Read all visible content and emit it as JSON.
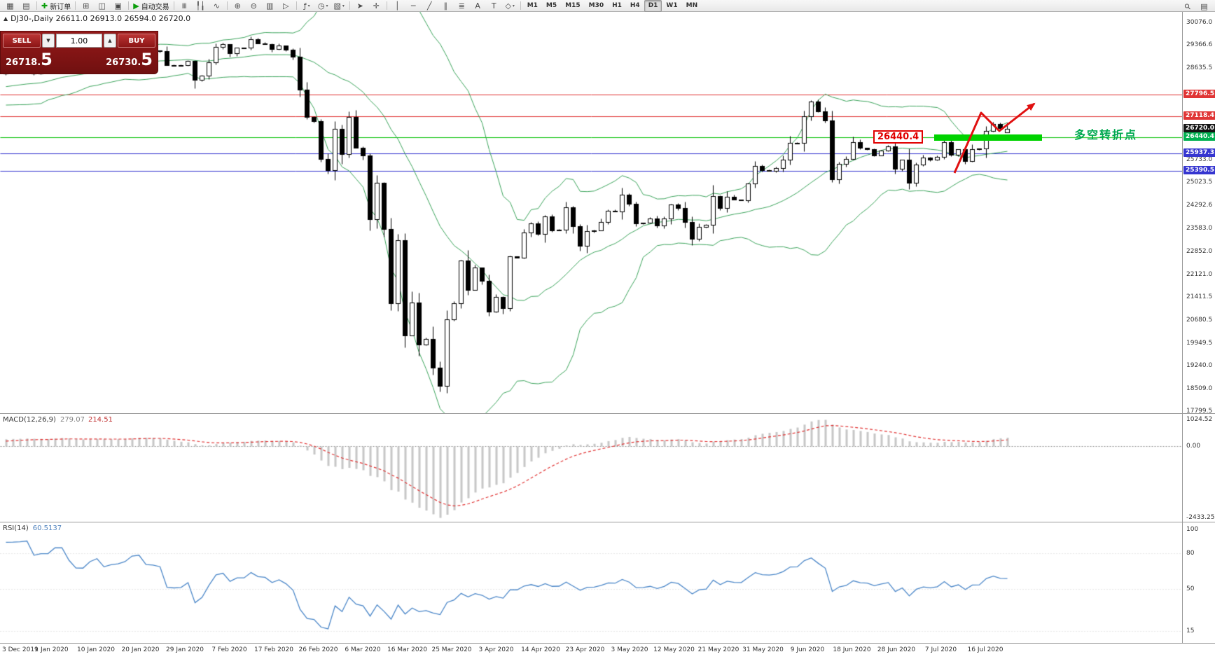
{
  "toolbar": {
    "caret_glyph": "▾",
    "groups": [
      {
        "name": "windows",
        "items": [
          {
            "name": "new-chart",
            "glyph": "▦"
          },
          {
            "name": "chart-profiles",
            "glyph": "▤"
          }
        ]
      },
      {
        "name": "trade",
        "items": [
          {
            "name": "new-order",
            "glyph": "✚",
            "label": "新订单"
          }
        ]
      },
      {
        "name": "panels",
        "items": [
          {
            "name": "market-watch",
            "glyph": "⊞"
          },
          {
            "name": "data-window",
            "glyph": "◫"
          },
          {
            "name": "navigator",
            "glyph": "▣"
          }
        ]
      },
      {
        "name": "autotrading",
        "items": [
          {
            "name": "autotrading",
            "glyph": "▶",
            "label": "自动交易"
          }
        ]
      },
      {
        "name": "chart-types",
        "items": [
          {
            "name": "bar-chart",
            "glyph": "ⅲ"
          },
          {
            "name": "candlestick-chart",
            "glyph": "╿╽"
          },
          {
            "name": "line-chart",
            "glyph": "∿"
          }
        ]
      },
      {
        "name": "zoom",
        "items": [
          {
            "name": "zoom-in",
            "glyph": "⊕"
          },
          {
            "name": "zoom-out",
            "glyph": "⊖"
          },
          {
            "name": "auto-scroll",
            "glyph": "▥"
          },
          {
            "name": "chart-shift",
            "glyph": "▷"
          }
        ]
      },
      {
        "name": "chart-tools",
        "items": [
          {
            "name": "indicators",
            "glyph": "ƒ",
            "caret": true
          },
          {
            "name": "periods",
            "glyph": "◷",
            "caret": true
          },
          {
            "name": "templates",
            "glyph": "▧",
            "caret": true
          }
        ]
      },
      {
        "name": "cursor-tools",
        "items": [
          {
            "name": "cursor",
            "glyph": "➤"
          },
          {
            "name": "crosshair",
            "glyph": "✛"
          }
        ]
      },
      {
        "name": "line-studies",
        "items": [
          {
            "name": "vertical-line",
            "glyph": "│"
          },
          {
            "name": "horizontal-line",
            "glyph": "─"
          },
          {
            "name": "trendline",
            "glyph": "╱"
          },
          {
            "name": "equidistant-channel",
            "glyph": "∥"
          },
          {
            "name": "fibonacci",
            "glyph": "≣"
          },
          {
            "name": "text",
            "glyph": "A"
          },
          {
            "name": "text-label",
            "glyph": "T"
          },
          {
            "name": "arrows",
            "glyph": "◇",
            "caret": true
          }
        ]
      }
    ],
    "timeframes": [
      {
        "label": "M1"
      },
      {
        "label": "M5"
      },
      {
        "label": "M15"
      },
      {
        "label": "M30"
      },
      {
        "label": "H1"
      },
      {
        "label": "H4"
      },
      {
        "label": "D1",
        "active": true
      },
      {
        "label": "W1"
      },
      {
        "label": "MN"
      }
    ],
    "right_icons": [
      {
        "name": "search",
        "glyph": "⚲"
      },
      {
        "name": "journal",
        "glyph": "▤"
      }
    ]
  },
  "chart": {
    "icon": "▲",
    "title": "DJ30-,Daily 26611.0 26913.0 26594.0 26720.0"
  },
  "trade_panel": {
    "sell_label": "SELL",
    "buy_label": "BUY",
    "volume": "1.00",
    "spin_down": "▼",
    "spin_up": "▲",
    "sell_price_small": "26718.",
    "sell_price_big": "5",
    "buy_price_small": "26730.",
    "buy_price_big": "5"
  },
  "annotations": {
    "level_label": "26440.4",
    "note": "多空转折点"
  },
  "macd": {
    "name": "MACD(12,26,9)",
    "value_main": "279.07",
    "value_signal": "214.51",
    "scale": [
      "1024.52",
      "0.00",
      "-2433.25"
    ]
  },
  "rsi": {
    "name": "RSI(14)",
    "value": "60.5137",
    "levels": [
      100,
      80,
      50,
      15
    ]
  },
  "price_axis": {
    "ticks": [
      "30076.0",
      "29366.6",
      "28635.5",
      "25733.0",
      "25023.5",
      "24292.6",
      "23583.0",
      "22852.0",
      "22121.0",
      "21411.5",
      "20680.5",
      "19949.5",
      "19240.0",
      "18509.0",
      "17799.5"
    ],
    "badges": [
      {
        "value": "27796.5",
        "color": "#e03535"
      },
      {
        "value": "27118.4",
        "color": "#e03535"
      },
      {
        "value": "26720.0",
        "color": "#141414"
      },
      {
        "value": "26440.4",
        "color": "#00b050"
      },
      {
        "value": "25937.3",
        "color": "#3535d0"
      },
      {
        "value": "25390.5",
        "color": "#3535d0"
      }
    ]
  },
  "date_axis": [
    "3 Dec 2019",
    "1 Jan 2020",
    "10 Jan 2020",
    "20 Jan 2020",
    "29 Jan 2020",
    "7 Feb 2020",
    "17 Feb 2020",
    "26 Feb 2020",
    "6 Mar 2020",
    "16 Mar 2020",
    "25 Mar 2020",
    "3 Apr 2020",
    "14 Apr 2020",
    "23 Apr 2020",
    "3 May 2020",
    "12 May 2020",
    "21 May 2020",
    "31 May 2020",
    "9 Jun 2020",
    "18 Jun 2020",
    "28 Jun 2020",
    "7 Jul 2020",
    "16 Jul 2020"
  ],
  "chart_data": {
    "type": "candlestick",
    "symbol": "DJ30-",
    "timeframe": "Daily",
    "last_ohlc": {
      "open": 26611.0,
      "high": 26913.0,
      "low": 26594.0,
      "close": 26720.0
    },
    "price_axis_range": [
      17733,
      30408
    ],
    "warmup_closes": [
      27502,
      27650,
      27677,
      28015,
      27910,
      27882,
      27912,
      28132,
      28135,
      28235,
      28236,
      28267,
      28376,
      28455
    ],
    "closes": [
      28504,
      28515,
      28551,
      28621,
      28462,
      28538,
      28538,
      28869,
      28869,
      28704,
      28584,
      28583,
      28823,
      28957,
      28824,
      28907,
      28939,
      29030,
      29297,
      29348,
      29196,
      29186,
      29160,
      28736,
      28723,
      28734,
      28859,
      28256,
      28400,
      28808,
      29291,
      29380,
      29103,
      29277,
      29276,
      29551,
      29423,
      29398,
      29232,
      29348,
      29220,
      28993,
      27961,
      27081,
      26958,
      25767,
      25409,
      26703,
      25917,
      27091,
      26121,
      25865,
      23851,
      25018,
      23553,
      21200,
      23186,
      20189,
      21237,
      19899,
      20087,
      19174,
      18592,
      20705,
      21201,
      22552,
      21637,
      22327,
      21917,
      20944,
      21413,
      21053,
      22680,
      22654,
      23434,
      23719,
      23391,
      23949,
      23504,
      23537,
      24242,
      23650,
      23018,
      23476,
      23515,
      23775,
      24134,
      24102,
      24634,
      24346,
      23724,
      23749,
      23883,
      23665,
      23876,
      24331,
      24222,
      23765,
      23248,
      23625,
      23685,
      24597,
      24207,
      24576,
      24474,
      24465,
      24995,
      25548,
      25401,
      25383,
      25475,
      25743,
      26270,
      26282,
      27111,
      27572,
      27272,
      26990,
      25128,
      25605,
      25763,
      26290,
      26120,
      26080,
      25871,
      26025,
      26156,
      25446,
      25746,
      25016,
      25596,
      25813,
      25735,
      25827,
      26287,
      25890,
      26067,
      25706,
      26075,
      26085,
      26643,
      26870,
      26735,
      26720
    ],
    "indicators": [
      {
        "name": "Bollinger Bands",
        "period": 20,
        "deviation": 2,
        "color": "#3aa35a"
      },
      {
        "name": "MACD",
        "params": [
          12,
          26,
          9
        ],
        "current_main": 279.07,
        "current_signal": 214.51,
        "scale_max": 1024.52,
        "scale_min": -2433.25
      },
      {
        "name": "RSI",
        "period": 14,
        "current": 60.5137
      }
    ],
    "h_lines": [
      {
        "price": 27796.5,
        "color": "#e03535"
      },
      {
        "price": 27118.4,
        "color": "#e03535"
      },
      {
        "price": 26440.4,
        "color": "#00c000"
      },
      {
        "price": 25937.3,
        "color": "#3535d0"
      },
      {
        "price": 25390.5,
        "color": "#3535d0"
      }
    ],
    "support_zone": {
      "price": 26440.4,
      "label": "26440.4",
      "note": "多空转折点"
    }
  }
}
